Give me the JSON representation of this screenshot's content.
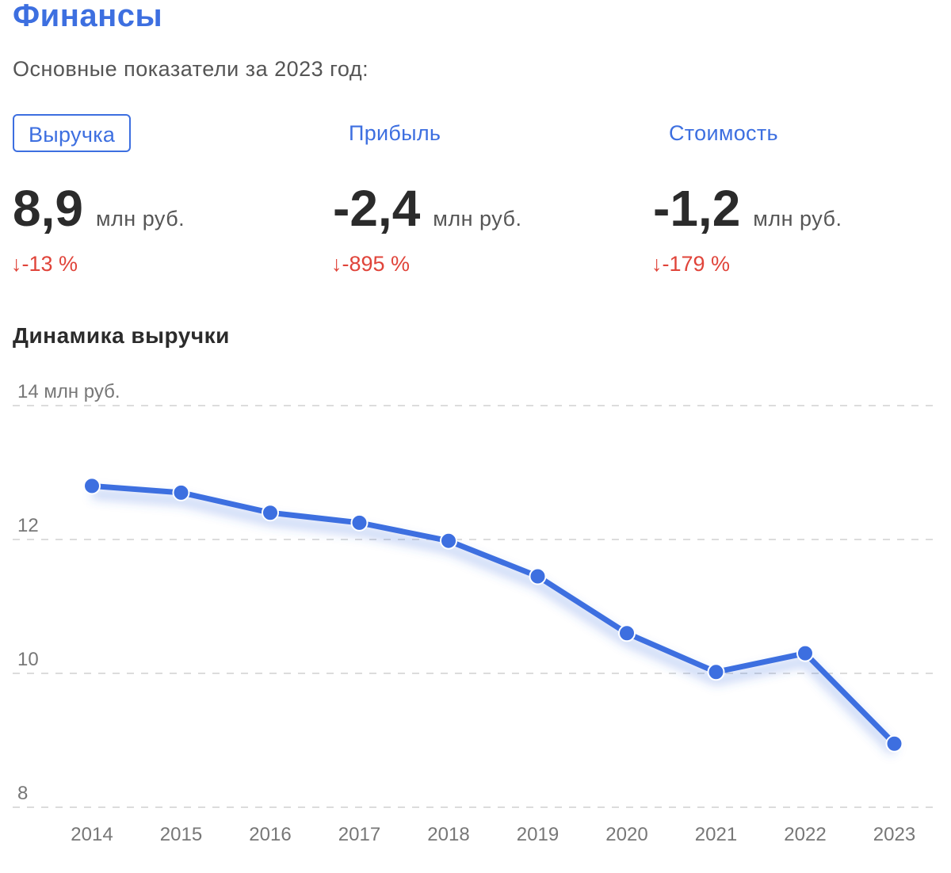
{
  "header": {
    "title": "Финансы",
    "subtitle": "Основные показатели за 2023 год:"
  },
  "tabs": [
    {
      "label": "Выручка",
      "active": true
    },
    {
      "label": "Прибыль",
      "active": false
    },
    {
      "label": "Стоимость",
      "active": false
    }
  ],
  "metrics": [
    {
      "value": "8,9",
      "unit": "млн руб.",
      "change": "↓-13 %"
    },
    {
      "value": "-2,4",
      "unit": "млн руб.",
      "change": "↓-895 %"
    },
    {
      "value": "-1,2",
      "unit": "млн руб.",
      "change": "↓-179 %"
    }
  ],
  "colors": {
    "accent": "#3d6fe0",
    "negative": "#e0443a",
    "grid": "#d0d0d0"
  },
  "chart_data": {
    "type": "line",
    "title": "Динамика выручки",
    "x": [
      "2014",
      "2015",
      "2016",
      "2017",
      "2018",
      "2019",
      "2020",
      "2021",
      "2022",
      "2023"
    ],
    "series": [
      {
        "values": [
          12.8,
          12.7,
          12.4,
          12.25,
          11.98,
          11.45,
          10.6,
          10.02,
          10.3,
          8.95
        ]
      }
    ],
    "yticks": [
      "14 млн руб.",
      "12",
      "10",
      "8"
    ],
    "ylim": [
      8,
      14
    ],
    "grid": true,
    "grid_style": "dashed"
  }
}
